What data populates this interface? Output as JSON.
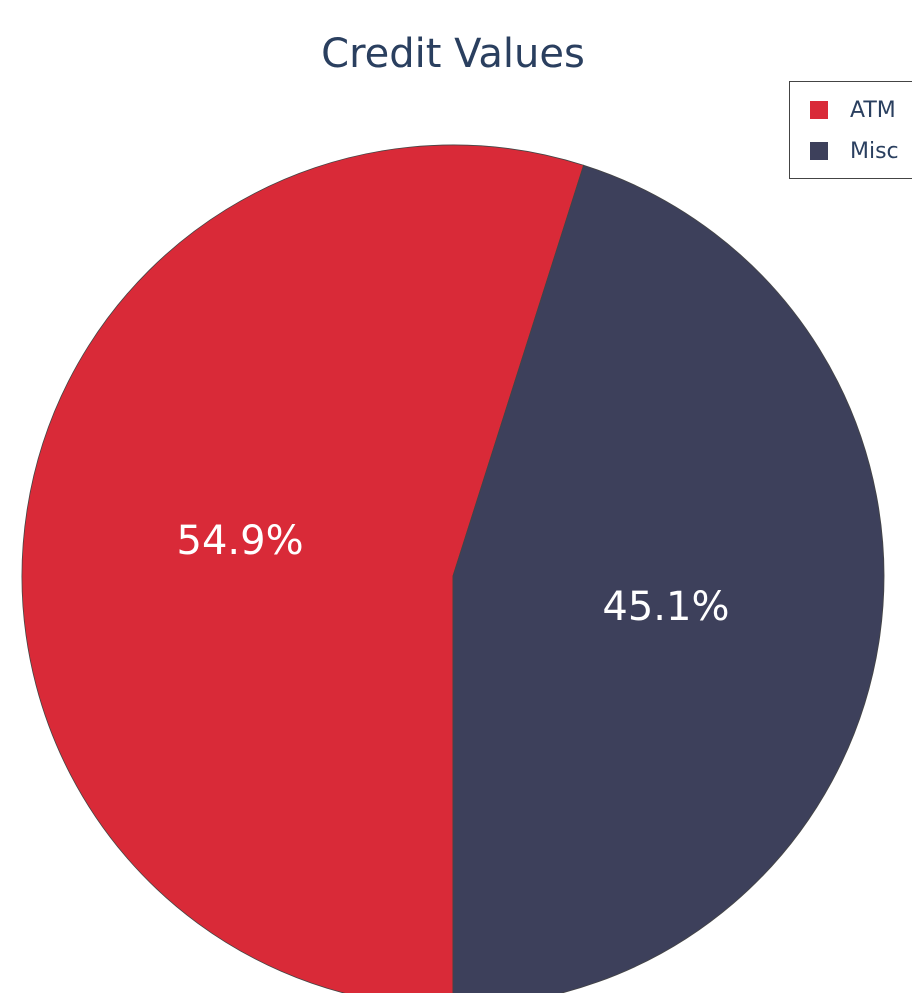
{
  "chart_data": {
    "type": "pie",
    "title": "Credit Values",
    "categories": [
      "ATM",
      "Misc"
    ],
    "values": [
      54.9,
      45.1
    ],
    "value_labels": [
      "54.9%",
      "45.1%"
    ],
    "colors": [
      "#d92a38",
      "#3d405b"
    ],
    "legend": "top-right"
  }
}
